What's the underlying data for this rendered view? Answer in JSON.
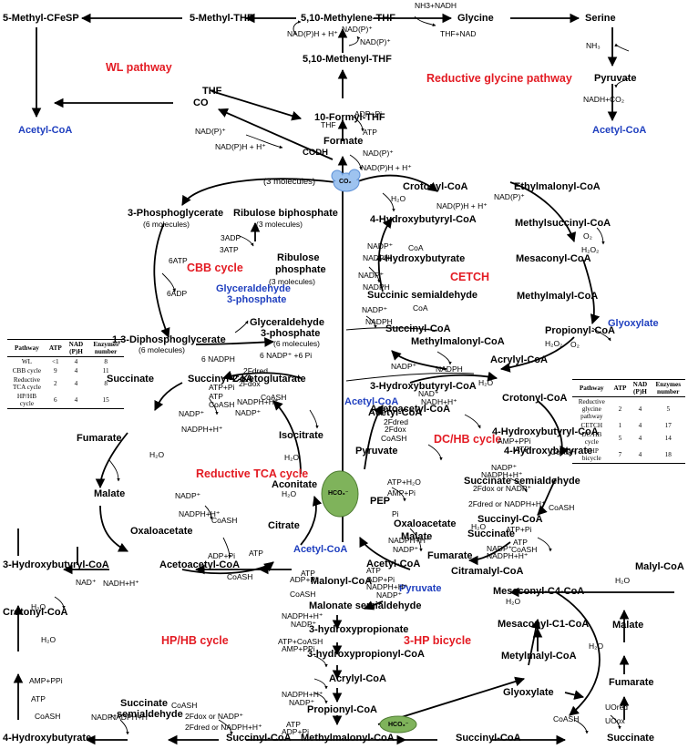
{
  "nodes": [
    {
      "id": "methyl_cfesp",
      "text": "5-Methyl-CFeSP"
    },
    {
      "id": "methyl_thf",
      "text": "5-Methyl-THF"
    },
    {
      "id": "methylene_thf",
      "text": "5,10-Methylene-THF"
    },
    {
      "id": "glycine",
      "text": "Glycine"
    },
    {
      "id": "serine",
      "text": "Serine"
    },
    {
      "id": "thf",
      "text": "THF"
    },
    {
      "id": "methenyl_thf",
      "text": "5,10-Methenyl-THF"
    },
    {
      "id": "pyruvate_top",
      "text": "Pyruvate"
    },
    {
      "id": "co",
      "text": "CO"
    },
    {
      "id": "formyl_thf",
      "text": "10-Formyl-THF"
    },
    {
      "id": "formate",
      "text": "Formate"
    },
    {
      "id": "pg3",
      "text": "3-Phosphoglycerate"
    },
    {
      "id": "rubp",
      "text": "Ribulose biphosphate"
    },
    {
      "id": "crotonyl_coa_top",
      "text": "Crotonyl-CoA"
    },
    {
      "id": "ethylmalonyl_coa",
      "text": "Ethylmalonyl-CoA"
    },
    {
      "id": "hb_coa_top",
      "text": "4-Hydroxybutyryl-CoA"
    },
    {
      "id": "methylsuccinyl_coa",
      "text": "Methylsuccinyl-CoA"
    },
    {
      "id": "ribulose_p",
      "text": "Ribulose"
    },
    {
      "id": "ribulose_p2",
      "text": "phosphate"
    },
    {
      "id": "hydroxybutyrate_top",
      "text": "4-Hydroxybutyrate"
    },
    {
      "id": "mesaconyl_coa",
      "text": "Mesaconyl-CoA"
    },
    {
      "id": "ssa_top",
      "text": "Succinic semialdehyde"
    },
    {
      "id": "methylmalyl_coa",
      "text": "Methylmalyl-CoA"
    },
    {
      "id": "succinyl_coa_cetch",
      "text": "Succinyl-CoA"
    },
    {
      "id": "propionyl_coa_top",
      "text": "Propionyl-CoA"
    },
    {
      "id": "dpg",
      "text": "1,3-Diphosphoglycerate"
    },
    {
      "id": "g3p",
      "text": "Glyceraldehyde"
    },
    {
      "id": "g3p2",
      "text": "3-phosphate"
    },
    {
      "id": "methylmalonyl_coa_top",
      "text": "Methylmalonyl-CoA"
    },
    {
      "id": "acrylyl_coa_top",
      "text": "Acrylyl-CoA"
    },
    {
      "id": "succinyl_coa_rtca",
      "text": "Succinyl-CoA"
    },
    {
      "id": "hbutyryl_coa_dc",
      "text": "3-Hydroxybutyryl-CoA"
    },
    {
      "id": "succinate_rtca",
      "text": "Succinate"
    },
    {
      "id": "oxoglutarate",
      "text": "2-Ketoglutarate"
    },
    {
      "id": "crotonyl_coa_dc",
      "text": "Crotonyl-CoA"
    },
    {
      "id": "acetoacetyl_coa_dc",
      "text": "Acetoacetyl-CoA"
    },
    {
      "id": "acetyl_coa_dc",
      "text": "Acetyl-CoA"
    },
    {
      "id": "hb_coa_dc",
      "text": "4-Hydroxybutyryl-CoA"
    },
    {
      "id": "hydroxybutyrate_dc",
      "text": "4-Hydroxybutyrate"
    },
    {
      "id": "isocitrate",
      "text": "Isocitrate"
    },
    {
      "id": "fumarate_rtca",
      "text": "Fumarate"
    },
    {
      "id": "pyruvate_dc",
      "text": "Pyruvate"
    },
    {
      "id": "ssa_dc",
      "text": "Succinate semialdehyde"
    },
    {
      "id": "aconitate",
      "text": "Aconitate"
    },
    {
      "id": "malate_rtca",
      "text": "Malate"
    },
    {
      "id": "pep",
      "text": "PEP"
    },
    {
      "id": "succinyl_coa_dc",
      "text": "Succinyl-CoA"
    },
    {
      "id": "oxaloacetate_dc",
      "text": "Oxaloacetate"
    },
    {
      "id": "citrate",
      "text": "Citrate"
    },
    {
      "id": "oxaloacetate_rtca",
      "text": "Oxaloacetate"
    },
    {
      "id": "succinate_dc",
      "text": "Succinate"
    },
    {
      "id": "malate_dc",
      "text": "Malate"
    },
    {
      "id": "fumarate_dc",
      "text": "Fumarate"
    },
    {
      "id": "acetoacetyl_coa_hp",
      "text": "Acetoacetyl-CoA"
    },
    {
      "id": "acetyl_coa_3hp",
      "text": "Acetyl-CoA"
    },
    {
      "id": "citramalyl_coa",
      "text": "Citramalyl-CoA"
    },
    {
      "id": "malyl_coa",
      "text": "Malyl-CoA"
    },
    {
      "id": "hbutyryl_coa_hp",
      "text": "3-Hydroxybutyryl-CoA"
    },
    {
      "id": "malonyl_coa",
      "text": "Malonyl-CoA"
    },
    {
      "id": "malonate_sa",
      "text": "Malonate semialdehyde"
    },
    {
      "id": "mesaconyl_c4",
      "text": "Mesaconyl-C4-CoA"
    },
    {
      "id": "crotonyl_coa_hp",
      "text": "Crotonyl-CoA"
    },
    {
      "id": "hp3",
      "text": "3-hydroxypropionate"
    },
    {
      "id": "mesaconyl_c1",
      "text": "Mesaconyl-C1-CoA"
    },
    {
      "id": "malate_3hp",
      "text": "Malate"
    },
    {
      "id": "hpcoa",
      "text": "3-hydroxypropionyl-CoA"
    },
    {
      "id": "methylmalyl_coa_3hp",
      "text": "Metylmalyl-CoA"
    },
    {
      "id": "fumarate_3hp",
      "text": "Fumarate"
    },
    {
      "id": "acrylyl_coa_bottom",
      "text": "Acrylyl-CoA"
    },
    {
      "id": "glyoxylate_3hp",
      "text": "Glyoxylate"
    },
    {
      "id": "propionyl_coa_bottom",
      "text": "Propionyl-CoA"
    },
    {
      "id": "ssa_hp",
      "text": "Succinate"
    },
    {
      "id": "ssa_hp2",
      "text": "semialdehyde"
    },
    {
      "id": "hydroxybutyrate_hp",
      "text": "4-Hydroxybutyrate"
    },
    {
      "id": "succinyl_coa_hp",
      "text": "Succinyl-CoA"
    },
    {
      "id": "methylmalonyl_coa_bottom",
      "text": "Methylmalonyl-CoA"
    },
    {
      "id": "succinyl_coa_bottom",
      "text": "Succinyl-CoA"
    },
    {
      "id": "succinate_bottom",
      "text": "Succinate"
    }
  ],
  "products": {
    "acetyl_coa_wl": "Acetyl-CoA",
    "acetyl_coa_rg": "Acetyl-CoA",
    "glyoxylate_cetch": "Glyoxylate",
    "g3p_cbb1": "Glyceraldehyde",
    "g3p_cbb2": "3-phosphate",
    "acetyl_coa_dc": "Acetyl-CoA",
    "acetyl_coa_center": "Acetyl-CoA",
    "pyruvate_3hp": "Pyruvate"
  },
  "pathways": {
    "wl": "WL pathway",
    "rg": "Reductive glycine pathway",
    "cbb": "CBB cycle",
    "cetch": "CETCH",
    "rtca": "Reductive TCA cycle",
    "dchb": "DC/HB cycle",
    "hphb": "HP/HB cycle",
    "hp3": "3-HP bicycle"
  },
  "center": {
    "co2": "CO₂",
    "co2_note": "(3 molecules)",
    "hco3_top": "HCO₃⁻",
    "hco3_bottom": "HCO₃⁻"
  },
  "cofactors": [
    {
      "id": "nh3_nadh",
      "text": "NH3+NADH"
    },
    {
      "id": "nadp_p1",
      "text": "NAD(P)⁺"
    },
    {
      "id": "nadph_h1",
      "text": "NAD(P)H + H⁺"
    },
    {
      "id": "thf_nad",
      "text": "THF+NAD"
    },
    {
      "id": "nadp_p2",
      "text": "NAD(P)⁺"
    },
    {
      "id": "nh3",
      "text": "NH₃"
    },
    {
      "id": "nadh_co2",
      "text": "NADH+CO₂"
    },
    {
      "id": "adp_pi",
      "text": "ADP+Pi"
    },
    {
      "id": "thf_small",
      "text": "THF"
    },
    {
      "id": "atp1",
      "text": "ATP"
    },
    {
      "id": "nadp_co",
      "text": "NAD(P)⁺"
    },
    {
      "id": "nadph_co",
      "text": "NAD(P)H + H⁺"
    },
    {
      "id": "codh",
      "text": "CODH"
    },
    {
      "id": "nadp_formate",
      "text": "NAD(P)⁺"
    },
    {
      "id": "nadph_formate",
      "text": "NAD(P)H + H⁺"
    },
    {
      "id": "pg3_note",
      "text": "(6 molecules)"
    },
    {
      "id": "rubp_note",
      "text": "(3 molecules)"
    },
    {
      "id": "h2o_cetch1",
      "text": "H₂O"
    },
    {
      "id": "nadp_cetch1",
      "text": "NAD(P)⁺"
    },
    {
      "id": "nadph_cetch1",
      "text": "NAD(P)H + H⁺"
    },
    {
      "id": "adp3",
      "text": "3ADP"
    },
    {
      "id": "atp3",
      "text": "3ATP"
    },
    {
      "id": "atp6",
      "text": "6ATP"
    },
    {
      "id": "adp6",
      "text": "6ADP"
    },
    {
      "id": "nadp_cetch2",
      "text": "NADP⁺"
    },
    {
      "id": "nadph_cetch2",
      "text": "NADPH"
    },
    {
      "id": "coa_cetch",
      "text": "CoA"
    },
    {
      "id": "o2",
      "text": "O₂"
    },
    {
      "id": "h2o2",
      "text": "H₂O₂"
    },
    {
      "id": "nadp_cetch3",
      "text": "NADP⁺"
    },
    {
      "id": "nadph_cetch3",
      "text": "NADPH"
    },
    {
      "id": "ribulose_note",
      "text": "(3 molecules)"
    },
    {
      "id": "nadp_cetch4",
      "text": "NADP⁺"
    },
    {
      "id": "coa_cetch2",
      "text": "CoA"
    },
    {
      "id": "nadph_cetch4",
      "text": "NADPH"
    },
    {
      "id": "h2o2_b",
      "text": "H₂O₂"
    },
    {
      "id": "o2_b",
      "text": "O₂"
    },
    {
      "id": "dpg_note",
      "text": "(6 molecules)"
    },
    {
      "id": "g3p_note",
      "text": "(6 molecules)"
    },
    {
      "id": "nadph6",
      "text": "6 NADPH"
    },
    {
      "id": "nadp6",
      "text": "6 NADP⁺ +6 Pi"
    },
    {
      "id": "nadp_cetch5",
      "text": "NADP⁺"
    },
    {
      "id": "nadph_cetch5",
      "text": "NADPH"
    },
    {
      "id": "fdred1",
      "text": "2Fdred"
    },
    {
      "id": "fdox1",
      "text": "2Fdox"
    },
    {
      "id": "atp_pi1",
      "text": "ATP+Pi"
    },
    {
      "id": "atp_r1",
      "text": "ATP"
    },
    {
      "id": "coash1",
      "text": "CoASH"
    },
    {
      "id": "coash2",
      "text": "CoASH"
    },
    {
      "id": "h2o_dc1",
      "text": "H₂O"
    },
    {
      "id": "nad_dc1",
      "text": "NAD⁺"
    },
    {
      "id": "nadh_dc1",
      "text": "NADH+H⁺"
    },
    {
      "id": "nadph_r1",
      "text": "NADPH+H⁺"
    },
    {
      "id": "nadp_r1",
      "text": "NADP⁺"
    },
    {
      "id": "nadp_r2",
      "text": "NADP⁺"
    },
    {
      "id": "nadph_r2",
      "text": "NADPH+H⁺"
    },
    {
      "id": "amp_ppi_dc",
      "text": "AMP+PPi"
    },
    {
      "id": "atp_dc1",
      "text": "ATP"
    },
    {
      "id": "coash_dc1",
      "text": "CoASH"
    },
    {
      "id": "fdred_dc",
      "text": "2Fdred"
    },
    {
      "id": "fdox_dc",
      "text": "2Fdox"
    },
    {
      "id": "coash_dc2",
      "text": "CoASH"
    },
    {
      "id": "h2o_r2",
      "text": "H₂O"
    },
    {
      "id": "h2o_r3",
      "text": "H₂O"
    },
    {
      "id": "h2o_r4",
      "text": "H₂O"
    },
    {
      "id": "nadp_dc2",
      "text": "NADP⁺"
    },
    {
      "id": "nadph_dc2",
      "text": "NADPH+H⁺"
    },
    {
      "id": "atp_h2o",
      "text": "ATP+H₂O"
    },
    {
      "id": "amp_pi",
      "text": "AMP+Pi"
    },
    {
      "id": "fdox_nadp",
      "text": "2Fdox or NADP⁺"
    },
    {
      "id": "fdred_nadph",
      "text": "2Fdred or NADPH+H⁺"
    },
    {
      "id": "nadp_r3",
      "text": "NADP⁺"
    },
    {
      "id": "nadph_r3",
      "text": "NADPH+H⁺"
    },
    {
      "id": "coash_dc3",
      "text": "CoASH"
    },
    {
      "id": "pi_dc",
      "text": "Pi"
    },
    {
      "id": "coash_r3",
      "text": "CoASH"
    },
    {
      "id": "h2o_dc3",
      "text": "H₂O"
    },
    {
      "id": "atp_pi_dc",
      "text": "ATP+Pi"
    },
    {
      "id": "nadph_dc3",
      "text": "NADPH+H⁺"
    },
    {
      "id": "nadp_dc3",
      "text": "NADP⁺"
    },
    {
      "id": "atp_dc3",
      "text": "ATP"
    },
    {
      "id": "coash_dc4",
      "text": "CoASH"
    },
    {
      "id": "nadp_dc4",
      "text": "NADP⁺"
    },
    {
      "id": "nadph_dc4",
      "text": "NADPH+H⁺"
    },
    {
      "id": "adp_pi2",
      "text": "ADP+Pi"
    },
    {
      "id": "atp_r4",
      "text": "ATP"
    },
    {
      "id": "coash_r4",
      "text": "CoASH"
    },
    {
      "id": "atp_c",
      "text": "ATP"
    },
    {
      "id": "adp_pi_c",
      "text": "ADP+Pi"
    },
    {
      "id": "atp_c2",
      "text": "ATP"
    },
    {
      "id": "adp_pi_c2",
      "text": "ADP+Pi"
    },
    {
      "id": "nad_hp",
      "text": "NAD⁺"
    },
    {
      "id": "nadh_hp",
      "text": "NADH+H⁺"
    },
    {
      "id": "coash_c",
      "text": "CoASH"
    },
    {
      "id": "nadph_c1",
      "text": "NADPH+H⁺"
    },
    {
      "id": "nadp_c1",
      "text": "NADP⁺"
    },
    {
      "id": "h2o_hp1",
      "text": "H₂O"
    },
    {
      "id": "h2o_3hp1",
      "text": "H₂O"
    },
    {
      "id": "nadph_c2",
      "text": "NADPH+H⁺"
    },
    {
      "id": "nadp_c2",
      "text": "NADP⁺"
    },
    {
      "id": "h2o_hp2",
      "text": "H₂O"
    },
    {
      "id": "atp_coash",
      "text": "ATP+CoASH"
    },
    {
      "id": "amp_ppi_c",
      "text": "AMP+PPi"
    },
    {
      "id": "h2o_3hp2",
      "text": "H₂O"
    },
    {
      "id": "h2o_3hp3",
      "text": "H₂O"
    },
    {
      "id": "amp_ppi_hp",
      "text": "AMP+PPi"
    },
    {
      "id": "atp_hp",
      "text": "ATP"
    },
    {
      "id": "coash_hp",
      "text": "CoASH"
    },
    {
      "id": "nadph_c3",
      "text": "NADPH+H⁺"
    },
    {
      "id": "nadp_c3",
      "text": "NADP⁺"
    },
    {
      "id": "coash_3hp",
      "text": "CoASH"
    },
    {
      "id": "coash_hp2",
      "text": "CoASH"
    },
    {
      "id": "nadp_hp2",
      "text": "NADP⁺"
    },
    {
      "id": "nadph_hp2",
      "text": "NADPH+H⁺"
    },
    {
      "id": "fdox_nadp2",
      "text": "2Fdox or NADP⁺"
    },
    {
      "id": "fdred_nadph2",
      "text": "2Fdred or NADPH+H⁺"
    },
    {
      "id": "atp_b",
      "text": "ATP"
    },
    {
      "id": "adp_pi_b",
      "text": "ADP+Pi"
    },
    {
      "id": "uored",
      "text": "UOred"
    },
    {
      "id": "uoox",
      "text": "UOox"
    }
  ],
  "table_left": {
    "headers": [
      "Pathway",
      "ATP",
      "NAD (P)H",
      "Enzymes number"
    ],
    "rows": [
      [
        "WL",
        "<1",
        "4",
        "8"
      ],
      [
        "CBB cycle",
        "9",
        "4",
        "11"
      ],
      [
        "Reductive TCA cycle",
        "2",
        "4",
        "8"
      ],
      [
        "HP/HB cycle",
        "6",
        "4",
        "15"
      ]
    ]
  },
  "table_right": {
    "headers": [
      "Pathway",
      "ATP",
      "NAD (P)H",
      "Enzymes number"
    ],
    "rows": [
      [
        "Reductive glycine pathway",
        "2",
        "4",
        "5"
      ],
      [
        "CETCH",
        "1",
        "4",
        "17"
      ],
      [
        "DC/HB cycle",
        "5",
        "4",
        "14"
      ],
      [
        "3-HP bicycle",
        "7",
        "4",
        "18"
      ]
    ]
  }
}
